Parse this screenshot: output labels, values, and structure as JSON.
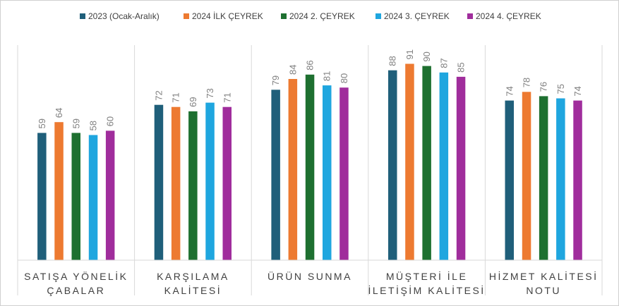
{
  "chart_data": {
    "type": "bar",
    "title": "",
    "xlabel": "",
    "ylabel": "",
    "ylim": [
      0,
      100
    ],
    "grid": false,
    "legend_position": "top",
    "categories": [
      [
        "SATIŞA YÖNELİK",
        "ÇABALAR"
      ],
      [
        "KARŞILAMA",
        "KALİTESİ"
      ],
      [
        "ÜRÜN SUNMA"
      ],
      [
        "MÜŞTERİ İLE",
        "İLETİŞİM KALİTESİ"
      ],
      [
        "HİZMET KALİTESİ",
        "NOTU"
      ]
    ],
    "series": [
      {
        "name": "2023 (Ocak-Aralık)",
        "color": "#1f5f7a",
        "values": [
          59,
          72,
          79,
          88,
          74
        ]
      },
      {
        "name": "2024 İLK ÇEYREK",
        "color": "#ed7a31",
        "values": [
          64,
          71,
          84,
          91,
          78
        ]
      },
      {
        "name": "2024 2. ÇEYREK",
        "color": "#1e7030",
        "values": [
          59,
          69,
          86,
          90,
          76
        ]
      },
      {
        "name": "2024 3. ÇEYREK",
        "color": "#1fa6df",
        "values": [
          58,
          73,
          81,
          87,
          75
        ]
      },
      {
        "name": "2024 4. ÇEYREK",
        "color": "#a02d9c",
        "values": [
          60,
          71,
          80,
          85,
          74
        ]
      }
    ]
  }
}
